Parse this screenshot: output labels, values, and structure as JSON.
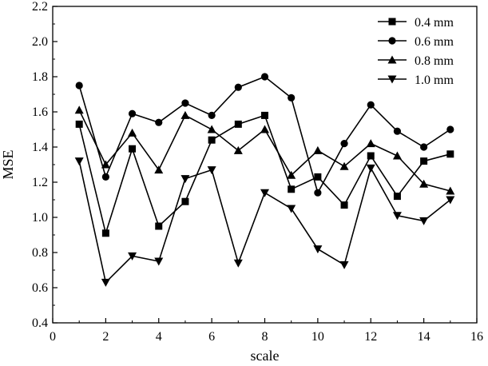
{
  "chart_data": {
    "type": "line",
    "xlabel": "scale",
    "ylabel": "MSE",
    "xlim": [
      0,
      16
    ],
    "ylim": [
      0.4,
      2.2
    ],
    "xticks": [
      0,
      2,
      4,
      6,
      8,
      10,
      12,
      14,
      16
    ],
    "yticks": [
      0.4,
      0.6,
      0.8,
      1.0,
      1.2,
      1.4,
      1.6,
      1.8,
      2.0,
      2.2
    ],
    "grid": false,
    "legend_position": "top-right",
    "x": [
      1,
      2,
      3,
      4,
      5,
      6,
      7,
      8,
      9,
      10,
      11,
      12,
      13,
      14,
      15
    ],
    "series": [
      {
        "name": "0.4 mm",
        "marker": "square",
        "values": [
          1.53,
          0.91,
          1.39,
          0.95,
          1.09,
          1.44,
          1.53,
          1.58,
          1.16,
          1.23,
          1.07,
          1.35,
          1.12,
          1.32,
          1.36
        ]
      },
      {
        "name": "0.6 mm",
        "marker": "circle",
        "values": [
          1.75,
          1.23,
          1.59,
          1.54,
          1.65,
          1.58,
          1.74,
          1.8,
          1.68,
          1.14,
          1.42,
          1.64,
          1.49,
          1.4,
          1.5
        ]
      },
      {
        "name": "0.8 mm",
        "marker": "triangle-up",
        "values": [
          1.61,
          1.3,
          1.48,
          1.27,
          1.58,
          1.5,
          1.38,
          1.5,
          1.24,
          1.38,
          1.29,
          1.42,
          1.35,
          1.19,
          1.15
        ]
      },
      {
        "name": "1.0 mm",
        "marker": "triangle-down",
        "values": [
          1.32,
          0.63,
          0.78,
          0.75,
          1.22,
          1.27,
          0.74,
          1.14,
          1.05,
          0.82,
          0.73,
          1.28,
          1.01,
          0.98,
          1.1
        ]
      }
    ],
    "colors": {
      "line": "#000000",
      "axis": "#000000"
    }
  }
}
